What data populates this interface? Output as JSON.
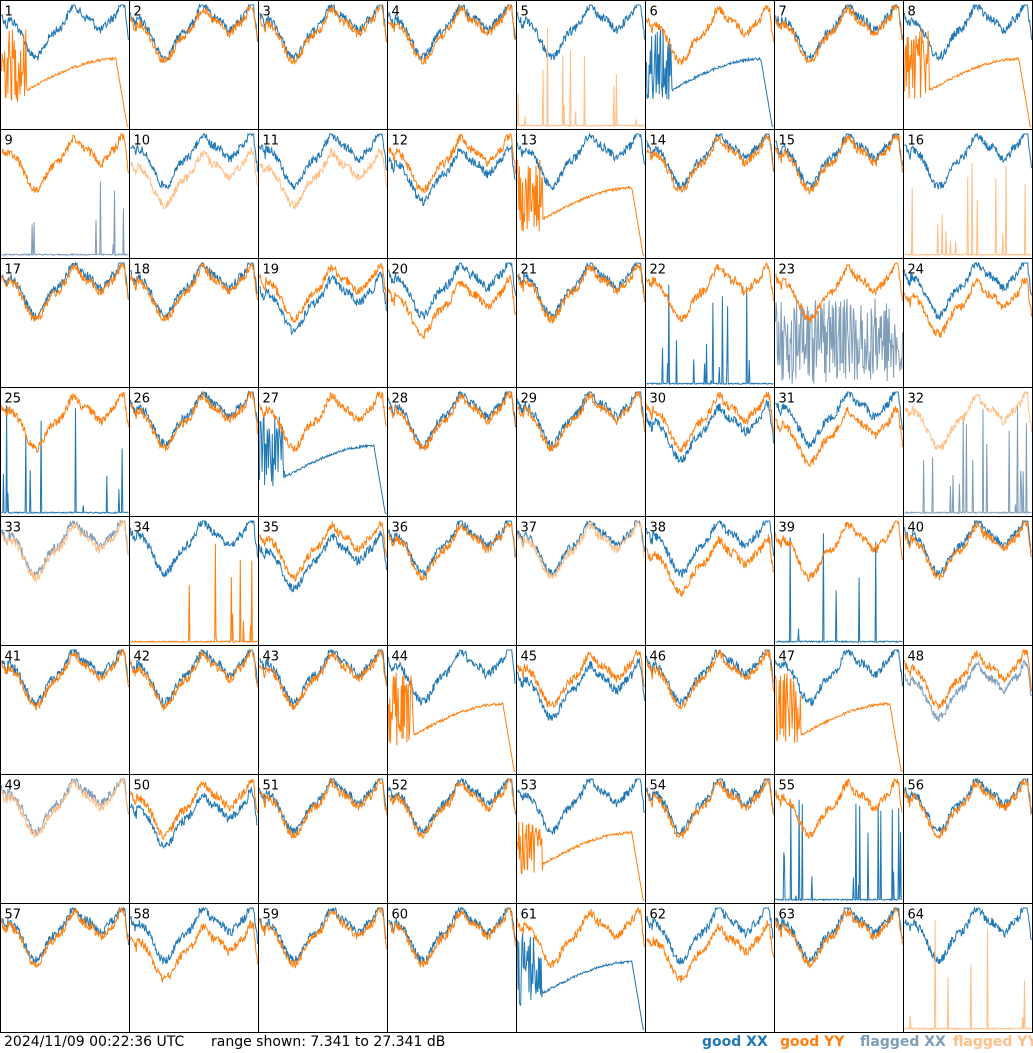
{
  "colors": {
    "good_xx": "#1f77b4",
    "good_yy": "#ff7f0e",
    "flagged_xx": "#7f9db9",
    "flagged_yy": "#ffbf87"
  },
  "footer": {
    "timestamp": "2024/11/09 00:22:36 UTC",
    "range": "range shown: 7.341 to 27.341 dB"
  },
  "legend": [
    {
      "label": "good XX",
      "key": "good_xx"
    },
    {
      "label": "good YY",
      "key": "good_yy"
    },
    {
      "label": "flagged XX",
      "key": "flagged_xx"
    },
    {
      "label": "flagged YY",
      "key": "flagged_yy"
    }
  ],
  "chart_data": {
    "type": "line",
    "title": "",
    "ylim": [
      7.341,
      27.341
    ],
    "grid_rows": 8,
    "grid_cols": 8,
    "tiles": [
      {
        "label": "1",
        "xx": "good",
        "yy": "good",
        "xx_kind": "normal",
        "yy_kind": "decay"
      },
      {
        "label": "2",
        "xx": "good",
        "yy": "good",
        "xx_kind": "normal",
        "yy_kind": "normal"
      },
      {
        "label": "3",
        "xx": "good",
        "yy": "good",
        "xx_kind": "normal",
        "yy_kind": "normal"
      },
      {
        "label": "4",
        "xx": "good",
        "yy": "good",
        "xx_kind": "normal",
        "yy_kind": "normal"
      },
      {
        "label": "5",
        "xx": "good",
        "yy": "flagged",
        "xx_kind": "normal",
        "yy_kind": "spikes"
      },
      {
        "label": "6",
        "xx": "good",
        "yy": "good",
        "xx_kind": "decay",
        "yy_kind": "normal"
      },
      {
        "label": "7",
        "xx": "good",
        "yy": "good",
        "xx_kind": "normal",
        "yy_kind": "normal"
      },
      {
        "label": "8",
        "xx": "good",
        "yy": "good",
        "xx_kind": "normal",
        "yy_kind": "decay"
      },
      {
        "label": "9",
        "xx": "flagged",
        "yy": "good",
        "xx_kind": "spikes",
        "yy_kind": "normal"
      },
      {
        "label": "10",
        "xx": "good",
        "yy": "flagged",
        "xx_kind": "normal",
        "yy_kind": "low"
      },
      {
        "label": "11",
        "xx": "good",
        "yy": "flagged",
        "xx_kind": "normal",
        "yy_kind": "low"
      },
      {
        "label": "12",
        "xx": "good",
        "yy": "good",
        "xx_kind": "low",
        "yy_kind": "normal"
      },
      {
        "label": "13",
        "xx": "good",
        "yy": "good",
        "xx_kind": "normal",
        "yy_kind": "decay"
      },
      {
        "label": "14",
        "xx": "good",
        "yy": "good",
        "xx_kind": "normal",
        "yy_kind": "normal"
      },
      {
        "label": "15",
        "xx": "good",
        "yy": "good",
        "xx_kind": "normal",
        "yy_kind": "normal"
      },
      {
        "label": "16",
        "xx": "good",
        "yy": "flagged",
        "xx_kind": "normal",
        "yy_kind": "spikes"
      },
      {
        "label": "17",
        "xx": "good",
        "yy": "good",
        "xx_kind": "normal",
        "yy_kind": "normal"
      },
      {
        "label": "18",
        "xx": "good",
        "yy": "good",
        "xx_kind": "normal",
        "yy_kind": "normal"
      },
      {
        "label": "19",
        "xx": "good",
        "yy": "good",
        "xx_kind": "low",
        "yy_kind": "normal"
      },
      {
        "label": "20",
        "xx": "good",
        "yy": "good",
        "xx_kind": "normal",
        "yy_kind": "low"
      },
      {
        "label": "21",
        "xx": "good",
        "yy": "good",
        "xx_kind": "normal",
        "yy_kind": "normal"
      },
      {
        "label": "22",
        "xx": "good",
        "yy": "good",
        "xx_kind": "spikes",
        "yy_kind": "normal"
      },
      {
        "label": "23",
        "xx": "flagged",
        "yy": "good",
        "xx_kind": "noisy",
        "yy_kind": "normal"
      },
      {
        "label": "24",
        "xx": "good",
        "yy": "good",
        "xx_kind": "normal",
        "yy_kind": "low"
      },
      {
        "label": "25",
        "xx": "good",
        "yy": "good",
        "xx_kind": "spikes",
        "yy_kind": "normal"
      },
      {
        "label": "26",
        "xx": "good",
        "yy": "good",
        "xx_kind": "normal",
        "yy_kind": "normal"
      },
      {
        "label": "27",
        "xx": "good",
        "yy": "good",
        "xx_kind": "decay",
        "yy_kind": "normal"
      },
      {
        "label": "28",
        "xx": "good",
        "yy": "good",
        "xx_kind": "normal",
        "yy_kind": "normal"
      },
      {
        "label": "29",
        "xx": "good",
        "yy": "good",
        "xx_kind": "normal",
        "yy_kind": "normal"
      },
      {
        "label": "30",
        "xx": "good",
        "yy": "good",
        "xx_kind": "low",
        "yy_kind": "normal"
      },
      {
        "label": "31",
        "xx": "good",
        "yy": "good",
        "xx_kind": "normal",
        "yy_kind": "low"
      },
      {
        "label": "32",
        "xx": "flagged",
        "yy": "flagged",
        "xx_kind": "spikes",
        "yy_kind": "normal"
      },
      {
        "label": "33",
        "xx": "flagged",
        "yy": "flagged",
        "xx_kind": "normal",
        "yy_kind": "normal"
      },
      {
        "label": "34",
        "xx": "good",
        "yy": "good",
        "xx_kind": "normal",
        "yy_kind": "spikes"
      },
      {
        "label": "35",
        "xx": "good",
        "yy": "good",
        "xx_kind": "low",
        "yy_kind": "normal"
      },
      {
        "label": "36",
        "xx": "good",
        "yy": "good",
        "xx_kind": "normal",
        "yy_kind": "normal"
      },
      {
        "label": "37",
        "xx": "good",
        "yy": "flagged",
        "xx_kind": "normal",
        "yy_kind": "normal"
      },
      {
        "label": "38",
        "xx": "good",
        "yy": "good",
        "xx_kind": "normal",
        "yy_kind": "low"
      },
      {
        "label": "39",
        "xx": "good",
        "yy": "good",
        "xx_kind": "spikes",
        "yy_kind": "normal"
      },
      {
        "label": "40",
        "xx": "good",
        "yy": "good",
        "xx_kind": "normal",
        "yy_kind": "normal"
      },
      {
        "label": "41",
        "xx": "good",
        "yy": "good",
        "xx_kind": "normal",
        "yy_kind": "normal"
      },
      {
        "label": "42",
        "xx": "good",
        "yy": "good",
        "xx_kind": "normal",
        "yy_kind": "normal"
      },
      {
        "label": "43",
        "xx": "good",
        "yy": "good",
        "xx_kind": "normal",
        "yy_kind": "normal"
      },
      {
        "label": "44",
        "xx": "good",
        "yy": "good",
        "xx_kind": "normal",
        "yy_kind": "decay"
      },
      {
        "label": "45",
        "xx": "good",
        "yy": "good",
        "xx_kind": "low",
        "yy_kind": "normal"
      },
      {
        "label": "46",
        "xx": "good",
        "yy": "good",
        "xx_kind": "normal",
        "yy_kind": "normal"
      },
      {
        "label": "47",
        "xx": "good",
        "yy": "good",
        "xx_kind": "normal",
        "yy_kind": "decay"
      },
      {
        "label": "48",
        "xx": "flagged",
        "yy": "good",
        "xx_kind": "low",
        "yy_kind": "normal"
      },
      {
        "label": "49",
        "xx": "flagged",
        "yy": "flagged",
        "xx_kind": "normal",
        "yy_kind": "normal"
      },
      {
        "label": "50",
        "xx": "good",
        "yy": "good",
        "xx_kind": "low",
        "yy_kind": "normal"
      },
      {
        "label": "51",
        "xx": "good",
        "yy": "good",
        "xx_kind": "normal",
        "yy_kind": "normal"
      },
      {
        "label": "52",
        "xx": "good",
        "yy": "good",
        "xx_kind": "normal",
        "yy_kind": "normal"
      },
      {
        "label": "53",
        "xx": "good",
        "yy": "good",
        "xx_kind": "normal",
        "yy_kind": "decay"
      },
      {
        "label": "54",
        "xx": "good",
        "yy": "good",
        "xx_kind": "normal",
        "yy_kind": "normal"
      },
      {
        "label": "55",
        "xx": "good",
        "yy": "good",
        "xx_kind": "spikes",
        "yy_kind": "normal"
      },
      {
        "label": "56",
        "xx": "good",
        "yy": "good",
        "xx_kind": "normal",
        "yy_kind": "normal"
      },
      {
        "label": "57",
        "xx": "good",
        "yy": "good",
        "xx_kind": "normal",
        "yy_kind": "normal"
      },
      {
        "label": "58",
        "xx": "good",
        "yy": "good",
        "xx_kind": "normal",
        "yy_kind": "low"
      },
      {
        "label": "59",
        "xx": "good",
        "yy": "good",
        "xx_kind": "normal",
        "yy_kind": "normal"
      },
      {
        "label": "60",
        "xx": "good",
        "yy": "good",
        "xx_kind": "normal",
        "yy_kind": "normal"
      },
      {
        "label": "61",
        "xx": "good",
        "yy": "good",
        "xx_kind": "decay",
        "yy_kind": "normal"
      },
      {
        "label": "62",
        "xx": "good",
        "yy": "good",
        "xx_kind": "normal",
        "yy_kind": "low"
      },
      {
        "label": "63",
        "xx": "good",
        "yy": "good",
        "xx_kind": "normal",
        "yy_kind": "normal"
      },
      {
        "label": "64",
        "xx": "good",
        "yy": "flagged",
        "xx_kind": "normal",
        "yy_kind": "spikes"
      }
    ]
  }
}
